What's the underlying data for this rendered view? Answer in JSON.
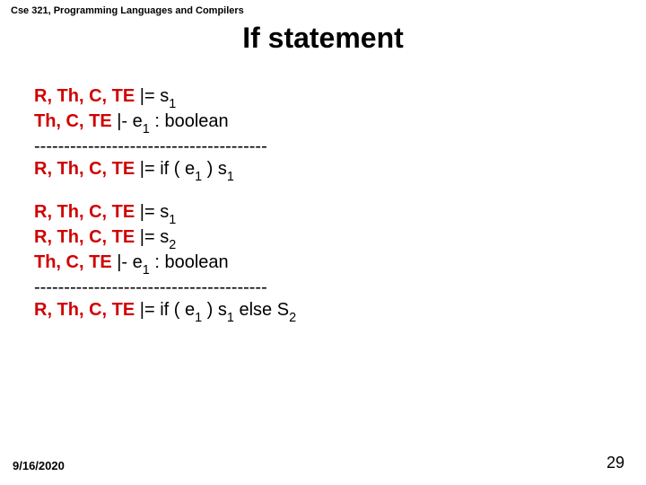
{
  "course": "Cse 321, Programming Languages and Compilers",
  "title": "If statement",
  "rule1": {
    "premise1_ctx": "R, Th, C, TE",
    "premise1_rest": " |=  s",
    "premise1_sub": "1",
    "premise2_ctx": "Th, C, TE",
    "premise2_rest": " |-  e",
    "premise2_sub": "1",
    "premise2_tail": " : boolean",
    "sep": "---------------------------------------",
    "concl_ctx": "R, Th, C, TE",
    "concl_rest": " |=  if ( e",
    "concl_sub1": "1",
    "concl_mid": " ) s",
    "concl_sub2": "1"
  },
  "rule2": {
    "premise1_ctx": "R, Th, C, TE",
    "premise1_rest": " |=  s",
    "premise1_sub": "1",
    "premise2_ctx": "R, Th, C, TE",
    "premise2_rest": " |=  s",
    "premise2_sub": "2",
    "premise3_ctx": "Th, C, TE",
    "premise3_rest": " |-  e",
    "premise3_sub": "1",
    "premise3_tail": " : boolean",
    "sep": "---------------------------------------",
    "concl_ctx": "R, Th, C, TE",
    "concl_rest": " |=  if ( e",
    "concl_sub1": "1",
    "concl_mid": " ) s",
    "concl_sub2": "1",
    "concl_tail": " else S",
    "concl_sub3": "2"
  },
  "footer": {
    "date": "9/16/2020",
    "page": "29"
  }
}
